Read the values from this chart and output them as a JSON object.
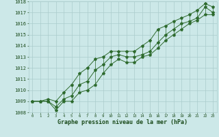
{
  "xlabel": "Graphe pression niveau de la mer (hPa)",
  "hours": [
    0,
    1,
    2,
    3,
    4,
    5,
    6,
    7,
    8,
    9,
    10,
    11,
    12,
    13,
    14,
    15,
    16,
    17,
    18,
    19,
    20,
    21,
    22,
    23
  ],
  "pressure_main": [
    1009.0,
    1009.0,
    1009.0,
    1008.5,
    1009.2,
    1009.5,
    1010.5,
    1010.8,
    1011.8,
    1012.3,
    1013.0,
    1013.2,
    1013.0,
    1013.0,
    1013.2,
    1013.5,
    1014.3,
    1015.0,
    1015.5,
    1016.0,
    1016.2,
    1016.5,
    1017.5,
    1017.0
  ],
  "pressure_high": [
    1009.0,
    1009.0,
    1009.2,
    1009.0,
    1009.8,
    1010.5,
    1011.5,
    1012.0,
    1012.8,
    1013.0,
    1013.5,
    1013.5,
    1013.5,
    1013.5,
    1014.0,
    1014.5,
    1015.5,
    1015.8,
    1016.2,
    1016.5,
    1016.8,
    1017.2,
    1017.8,
    1017.5
  ],
  "pressure_low": [
    1009.0,
    1009.0,
    1009.0,
    1008.2,
    1009.0,
    1009.0,
    1009.8,
    1010.0,
    1010.5,
    1011.5,
    1012.3,
    1012.8,
    1012.5,
    1012.5,
    1013.0,
    1013.2,
    1013.8,
    1014.5,
    1015.0,
    1015.5,
    1016.0,
    1016.3,
    1016.8,
    1016.8
  ],
  "ylim_min": 1008,
  "ylim_max": 1018,
  "yticks": [
    1008,
    1009,
    1010,
    1011,
    1012,
    1013,
    1014,
    1015,
    1016,
    1017,
    1018
  ],
  "line_color": "#2d6a2d",
  "marker_color": "#2d6a2d",
  "bg_color": "#cce8e8",
  "grid_color": "#aacccc",
  "xlabel_color": "#1a4a1a",
  "text_color": "#1a4a1a"
}
